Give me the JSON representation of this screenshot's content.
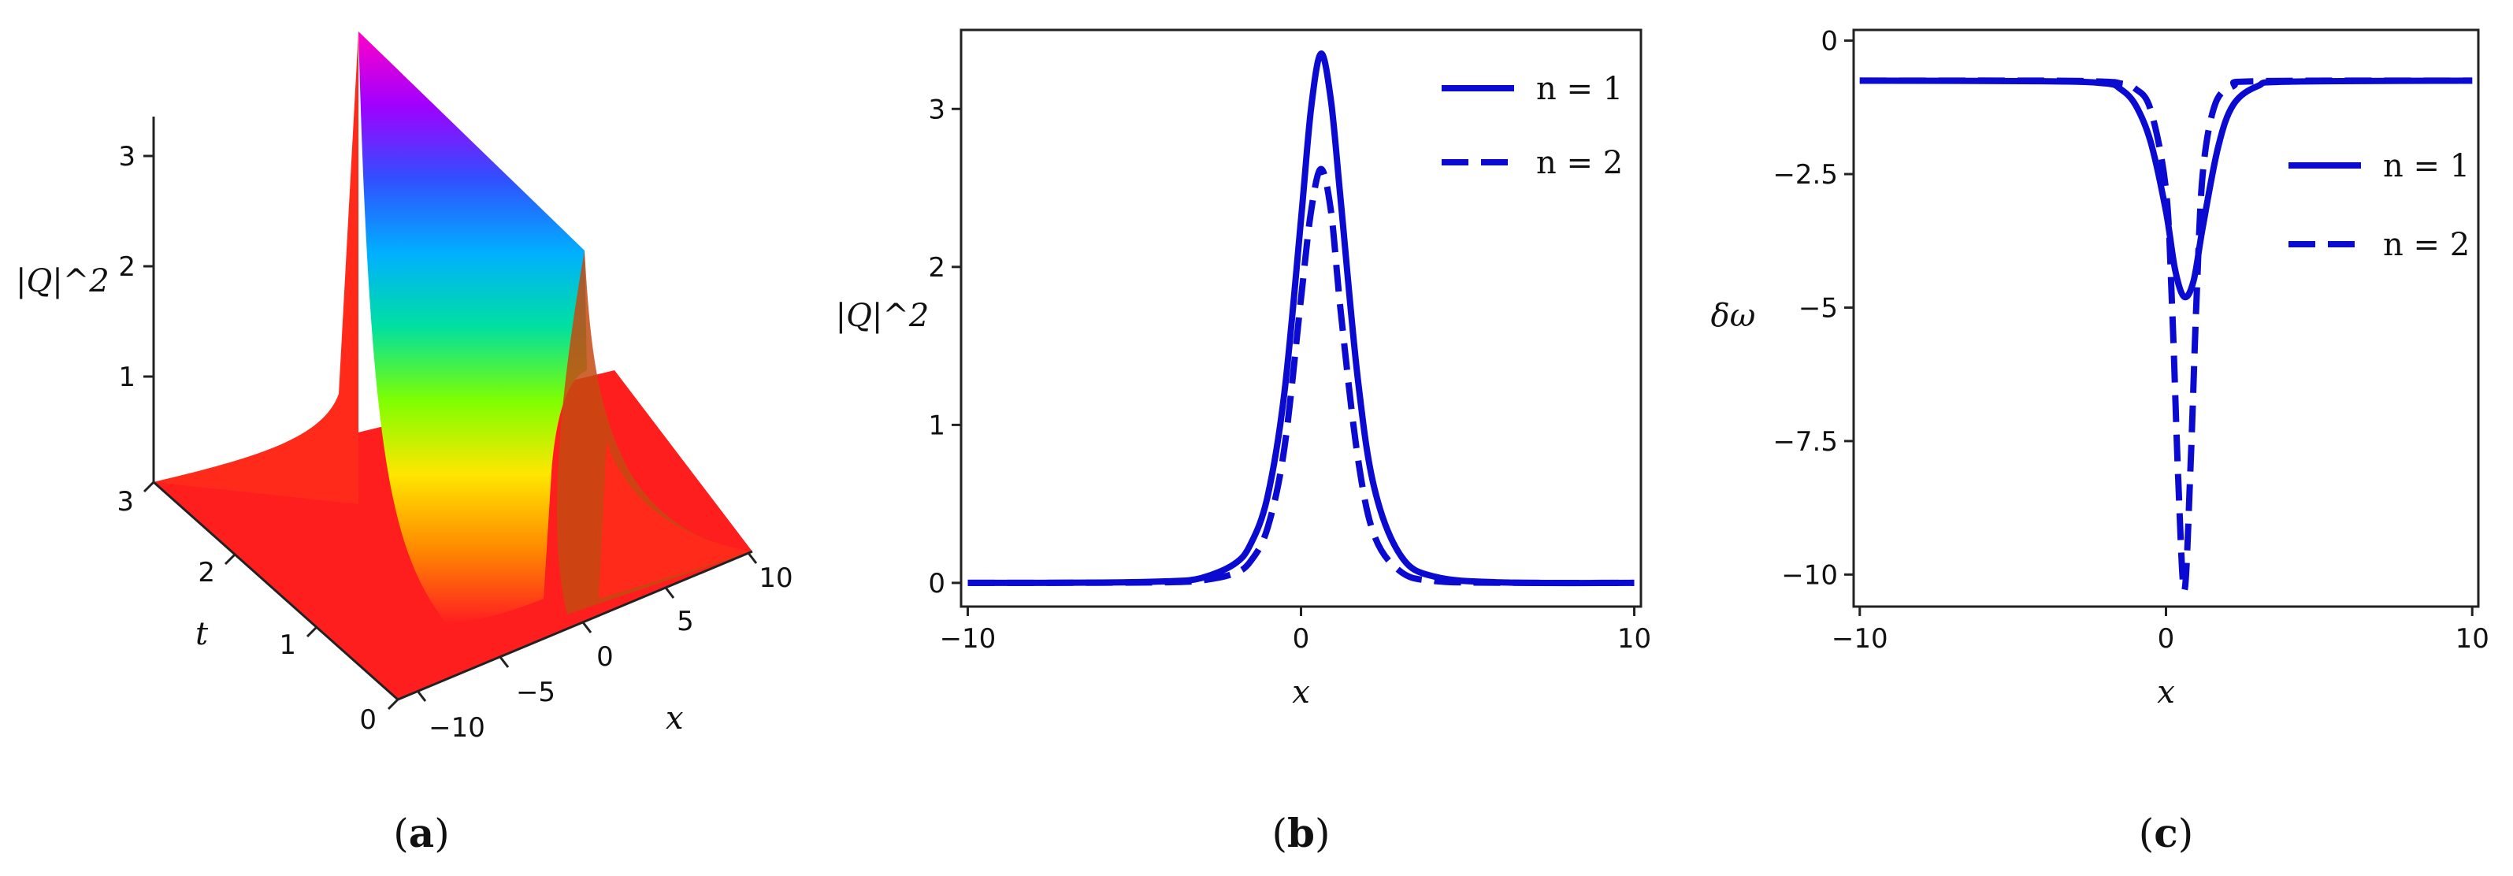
{
  "chart_data": [
    {
      "panel": "a",
      "type": "surface3d",
      "panel_label": "a",
      "zlabel": "|Q|^2",
      "xlabel": "x",
      "ylabel": "t",
      "x_ticks": [
        "−10",
        "−5",
        "0",
        "5",
        "10"
      ],
      "t_ticks": [
        "0",
        "1",
        "2",
        "3"
      ],
      "z_ticks": [
        "1",
        "2",
        "3"
      ],
      "xlim": [
        -10,
        10
      ],
      "tlim": [
        0,
        3
      ],
      "zlim": [
        0,
        3.4
      ],
      "peak_x": 0.6,
      "peak_value": 3.35,
      "colormap": [
        "#ff2020",
        "#ff8a00",
        "#ffe600",
        "#7fff00",
        "#00e0a0",
        "#00b0ff",
        "#3050ff",
        "#a000ff",
        "#ff00c8"
      ]
    },
    {
      "panel": "b",
      "type": "line",
      "panel_label": "b",
      "xlabel": "x",
      "ylabel": "|Q|^2",
      "xlim": [
        -10.2,
        10.2
      ],
      "ylim": [
        -0.15,
        3.5
      ],
      "x_ticks": [
        -10,
        0,
        10
      ],
      "x_tick_labels": [
        "−10",
        "0",
        "10"
      ],
      "y_ticks": [
        0,
        1,
        2,
        3
      ],
      "y_tick_labels": [
        "0",
        "1",
        "2",
        "3"
      ],
      "legend_position": "top-right",
      "series": [
        {
          "name": "n = 1",
          "style": "solid",
          "color": "#0a0ad0",
          "x": [
            -10,
            -6,
            -4,
            -3,
            -2,
            -1.5,
            -1,
            -0.5,
            0,
            0.3,
            0.6,
            0.9,
            1.2,
            1.7,
            2.2,
            3,
            4,
            6,
            10
          ],
          "y": [
            0,
            0.002,
            0.01,
            0.03,
            0.12,
            0.25,
            0.55,
            1.2,
            2.3,
            3.0,
            3.35,
            3.05,
            2.4,
            1.3,
            0.6,
            0.17,
            0.04,
            0.003,
            0
          ]
        },
        {
          "name": "n = 2",
          "style": "dashed",
          "color": "#0a0ad0",
          "x": [
            -10,
            -6,
            -4,
            -3,
            -2,
            -1.5,
            -1,
            -0.5,
            0,
            0.3,
            0.6,
            0.9,
            1.2,
            1.7,
            2.2,
            3,
            4,
            6,
            10
          ],
          "y": [
            0,
            0.001,
            0.004,
            0.015,
            0.06,
            0.14,
            0.35,
            0.85,
            1.8,
            2.35,
            2.62,
            2.35,
            1.7,
            0.8,
            0.3,
            0.07,
            0.012,
            0.001,
            0
          ]
        }
      ]
    },
    {
      "panel": "c",
      "type": "line",
      "panel_label": "c",
      "xlabel": "x",
      "ylabel": "δω",
      "xlim": [
        -10.2,
        10.2
      ],
      "ylim": [
        -10.6,
        0.2
      ],
      "x_ticks": [
        -10,
        0,
        10
      ],
      "x_tick_labels": [
        "−10",
        "0",
        "10"
      ],
      "y_ticks": [
        0,
        -2.5,
        -5,
        -7.5,
        -10
      ],
      "y_tick_labels": [
        "0",
        "−2.5",
        "−5",
        "−7.5",
        "−10"
      ],
      "legend_position": "top-right",
      "series": [
        {
          "name": "n = 1",
          "style": "solid",
          "color": "#0a0ad0",
          "x": [
            -10,
            -4,
            -2,
            -1.5,
            -1,
            -0.5,
            0,
            0.3,
            0.6,
            0.9,
            1.2,
            1.7,
            2.2,
            3,
            4,
            10
          ],
          "y": [
            -0.75,
            -0.76,
            -0.8,
            -0.9,
            -1.2,
            -1.9,
            -3.2,
            -4.3,
            -4.8,
            -4.5,
            -3.5,
            -2.0,
            -1.2,
            -0.85,
            -0.77,
            -0.75
          ]
        },
        {
          "name": "n = 2",
          "style": "dashed",
          "color": "#0a0ad0",
          "x": [
            -10,
            -4,
            -2,
            -1.5,
            -1,
            -0.5,
            0,
            0.2,
            0.4,
            0.6,
            0.8,
            1.0,
            1.2,
            1.6,
            2.2,
            3,
            10
          ],
          "y": [
            -0.75,
            -0.75,
            -0.77,
            -0.8,
            -0.9,
            -1.3,
            -2.8,
            -5.0,
            -8.2,
            -10.3,
            -8.0,
            -4.8,
            -2.5,
            -1.2,
            -0.85,
            -0.76,
            -0.75
          ]
        }
      ]
    }
  ]
}
